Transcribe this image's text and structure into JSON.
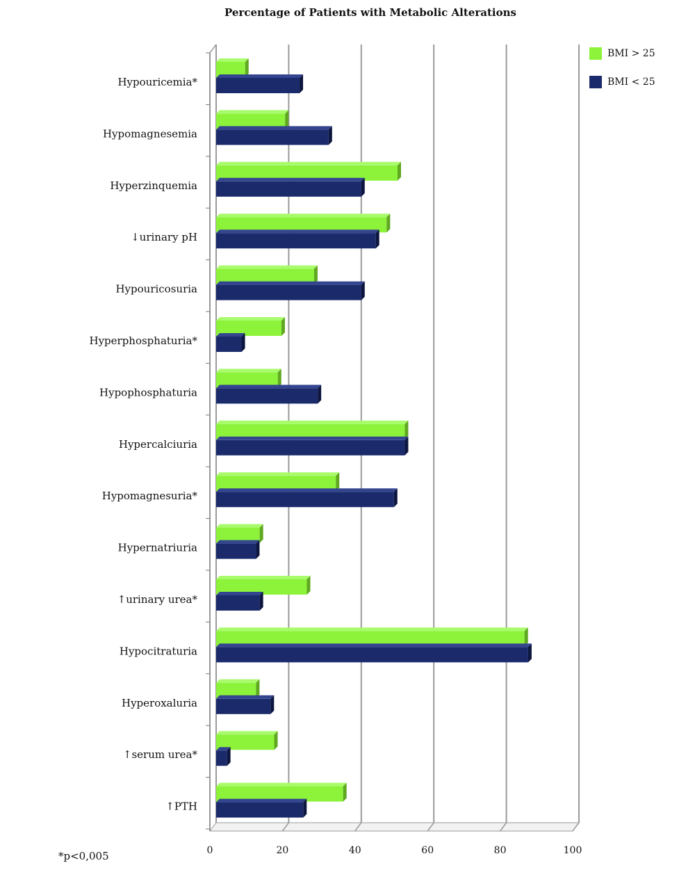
{
  "chart_data": {
    "type": "bar",
    "orientation": "horizontal",
    "title": "Percentage of Patients with Metabolic Alterations",
    "categories": [
      "Hypouricemia*",
      "Hypomagnesemia",
      "Hyperzinquemia",
      "↓urinary pH",
      "Hypouricosuria",
      "Hyperphosphaturia*",
      "Hypophosphaturia",
      "Hypercalciuria",
      "Hypomagnesuria*",
      "Hypernatriuria",
      "↑urinary urea*",
      "Hypocitraturia",
      "Hyperoxaluria",
      "↑serum urea*",
      "↑PTH"
    ],
    "series": [
      {
        "name": "BMI > 25",
        "color": "#8cf33a",
        "values": [
          8,
          19,
          50,
          47,
          27,
          18,
          17,
          52,
          33,
          12,
          25,
          85,
          11,
          16,
          35
        ]
      },
      {
        "name": "BMI < 25",
        "color": "#1b2a6b",
        "values": [
          23,
          31,
          40,
          44,
          40,
          7,
          28,
          52,
          49,
          11,
          12,
          86,
          15,
          3,
          24
        ]
      }
    ],
    "x_ticks": [
      "0",
      "20",
      "40",
      "60",
      "80",
      "100"
    ],
    "xlim": [
      0,
      100
    ],
    "grid": true,
    "legend_position": "top-right",
    "footnote": "*p<0,005"
  }
}
